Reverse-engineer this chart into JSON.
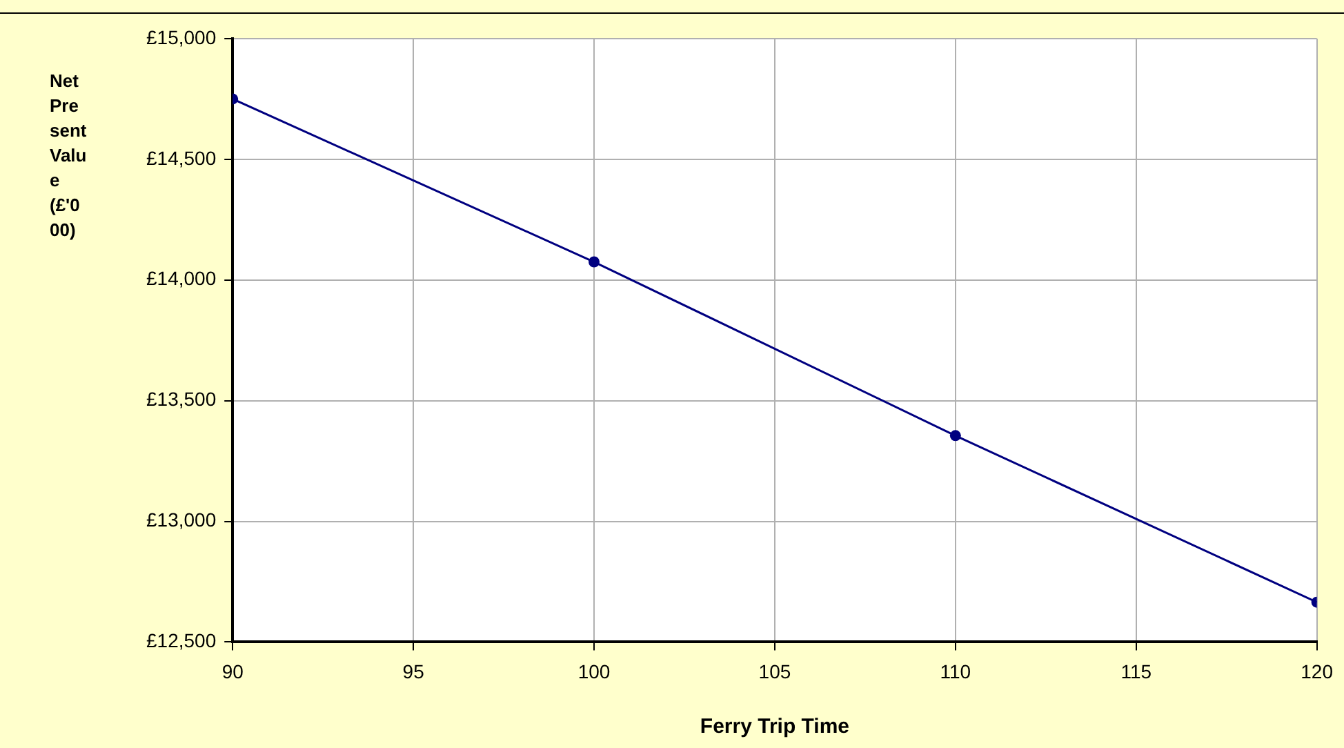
{
  "chart_data": {
    "type": "line",
    "xlabel": "Ferry Trip Time",
    "ylabel": "Net Present Value (£'000)",
    "x": [
      90,
      100,
      110,
      120
    ],
    "series": [
      {
        "color": "#000080",
        "values": [
          14750,
          14075,
          13355,
          12665
        ]
      }
    ],
    "xlim": [
      90,
      120
    ],
    "xticks": [
      90,
      95,
      100,
      105,
      110,
      115,
      120
    ],
    "ylim": [
      12500,
      15000
    ],
    "yticks": [
      {
        "value": 12500,
        "label": "£12,500"
      },
      {
        "value": 13000,
        "label": "£13,000"
      },
      {
        "value": 13500,
        "label": "£13,500"
      },
      {
        "value": 14000,
        "label": "£14,000"
      },
      {
        "value": 14500,
        "label": "£14,500"
      },
      {
        "value": 15000,
        "label": "£15,000"
      }
    ],
    "grid": true,
    "legend": false,
    "marker": "circle",
    "line_style": "solid"
  }
}
